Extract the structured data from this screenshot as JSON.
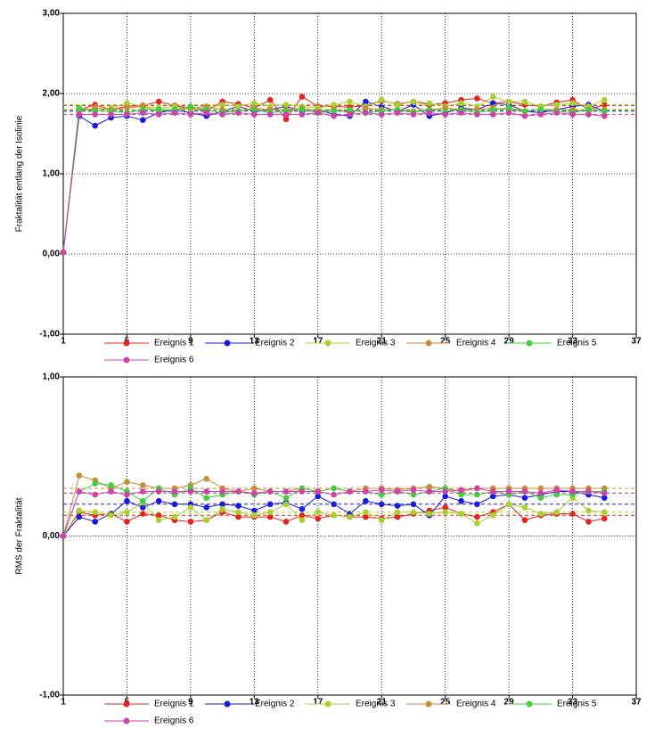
{
  "chart_data": [
    {
      "type": "line",
      "ylabel": "Fraktalität entlang der Isolinie",
      "x": [
        1,
        2,
        3,
        4,
        5,
        6,
        7,
        8,
        9,
        10,
        11,
        12,
        13,
        14,
        15,
        16,
        17,
        18,
        19,
        20,
        21,
        22,
        23,
        24,
        25,
        26,
        27,
        28,
        29,
        30,
        31,
        32,
        33,
        34,
        35
      ],
      "xlim": [
        1,
        37
      ],
      "xticks": [
        1,
        5,
        9,
        13,
        17,
        21,
        25,
        29,
        33,
        37
      ],
      "ylim": [
        -1,
        3
      ],
      "yticks": [
        {
          "value": -1,
          "label": "-1,00"
        },
        {
          "value": 0,
          "label": "0,00"
        },
        {
          "value": 1,
          "label": "1,00"
        },
        {
          "value": 2,
          "label": "2,00"
        },
        {
          "value": 3,
          "label": "3,00"
        }
      ],
      "grid": true,
      "series": [
        {
          "name": "Ereignis 1",
          "color": "#e8221e",
          "mean": 1.85,
          "values": [
            0.02,
            1.8,
            1.86,
            1.8,
            1.84,
            1.85,
            1.9,
            1.85,
            1.82,
            1.78,
            1.9,
            1.87,
            1.82,
            1.92,
            1.68,
            1.96,
            1.84,
            1.84,
            1.83,
            1.85,
            1.91,
            1.87,
            1.9,
            1.86,
            1.88,
            1.92,
            1.94,
            1.88,
            1.9,
            1.86,
            1.84,
            1.89,
            1.92,
            1.8,
            1.86
          ]
        },
        {
          "name": "Ereignis 2",
          "color": "#1a1adf",
          "mean": 1.78,
          "values": [
            0.02,
            1.72,
            1.6,
            1.7,
            1.72,
            1.67,
            1.76,
            1.8,
            1.76,
            1.72,
            1.78,
            1.84,
            1.78,
            1.8,
            1.84,
            1.78,
            1.8,
            1.74,
            1.72,
            1.9,
            1.84,
            1.78,
            1.86,
            1.72,
            1.76,
            1.82,
            1.8,
            1.88,
            1.86,
            1.78,
            1.76,
            1.8,
            1.84,
            1.86,
            1.78
          ]
        },
        {
          "name": "Ereignis 3",
          "color": "#a8d12f",
          "mean": 1.86,
          "values": [
            0.02,
            1.82,
            1.8,
            1.82,
            1.88,
            1.84,
            1.82,
            1.84,
            1.8,
            1.82,
            1.86,
            1.84,
            1.88,
            1.84,
            1.86,
            1.84,
            1.82,
            1.86,
            1.9,
            1.84,
            1.92,
            1.86,
            1.9,
            1.88,
            1.84,
            1.88,
            1.84,
            1.96,
            1.9,
            1.9,
            1.84,
            1.86,
            1.88,
            1.84,
            1.92
          ]
        },
        {
          "name": "Ereignis 4",
          "color": "#c98a3a",
          "mean": 1.8,
          "values": [
            0.02,
            1.78,
            1.82,
            1.8,
            1.82,
            1.84,
            1.78,
            1.8,
            1.82,
            1.84,
            1.8,
            1.78,
            1.82,
            1.8,
            1.8,
            1.82,
            1.78,
            1.8,
            1.76,
            1.82,
            1.8,
            1.8,
            1.78,
            1.8,
            1.82,
            1.8,
            1.8,
            1.82,
            1.8,
            1.78,
            1.8,
            1.8,
            1.8,
            1.78,
            1.8
          ]
        },
        {
          "name": "Ereignis 5",
          "color": "#3fcf3f",
          "mean": 1.79,
          "values": [
            0.02,
            1.82,
            1.78,
            1.78,
            1.76,
            1.8,
            1.8,
            1.8,
            1.84,
            1.8,
            1.76,
            1.78,
            1.8,
            1.76,
            1.78,
            1.8,
            1.76,
            1.78,
            1.8,
            1.76,
            1.78,
            1.8,
            1.76,
            1.8,
            1.78,
            1.8,
            1.76,
            1.8,
            1.82,
            1.78,
            1.8,
            1.78,
            1.76,
            1.8,
            1.78
          ]
        },
        {
          "name": "Ereignis 6",
          "color": "#cc44aa",
          "mean": 1.74,
          "values": [
            0.02,
            1.74,
            1.74,
            1.74,
            1.74,
            1.76,
            1.74,
            1.76,
            1.74,
            1.76,
            1.74,
            1.76,
            1.74,
            1.74,
            1.74,
            1.74,
            1.76,
            1.72,
            1.74,
            1.76,
            1.74,
            1.76,
            1.74,
            1.76,
            1.74,
            1.76,
            1.74,
            1.74,
            1.76,
            1.72,
            1.74,
            1.76,
            1.74,
            1.74,
            1.72
          ]
        }
      ]
    },
    {
      "type": "line",
      "ylabel": "RMS der Fraktalität",
      "x": [
        1,
        2,
        3,
        4,
        5,
        6,
        7,
        8,
        9,
        10,
        11,
        12,
        13,
        14,
        15,
        16,
        17,
        18,
        19,
        20,
        21,
        22,
        23,
        24,
        25,
        26,
        27,
        28,
        29,
        30,
        31,
        32,
        33,
        34,
        35
      ],
      "xlim": [
        1,
        37
      ],
      "xticks": [
        1,
        5,
        9,
        13,
        17,
        21,
        25,
        29,
        33,
        37
      ],
      "ylim": [
        -1,
        1
      ],
      "yticks": [
        {
          "value": -1,
          "label": "-1,00"
        },
        {
          "value": 0,
          "label": "0,00"
        },
        {
          "value": 1,
          "label": "1,00"
        }
      ],
      "grid": true,
      "series": [
        {
          "name": "Ereignis 1",
          "color": "#e8221e",
          "mean": 0.13,
          "values": [
            0,
            0.15,
            0.13,
            0.14,
            0.09,
            0.14,
            0.13,
            0.1,
            0.09,
            0.1,
            0.15,
            0.12,
            0.12,
            0.12,
            0.09,
            0.13,
            0.11,
            0.13,
            0.12,
            0.12,
            0.11,
            0.12,
            0.14,
            0.16,
            0.18,
            0.14,
            0.12,
            0.15,
            0.2,
            0.1,
            0.13,
            0.14,
            0.14,
            0.09,
            0.11
          ]
        },
        {
          "name": "Ereignis 2",
          "color": "#1a1adf",
          "mean": 0.2,
          "values": [
            0,
            0.12,
            0.09,
            0.14,
            0.22,
            0.18,
            0.22,
            0.2,
            0.2,
            0.18,
            0.2,
            0.19,
            0.16,
            0.2,
            0.21,
            0.17,
            0.25,
            0.2,
            0.14,
            0.22,
            0.2,
            0.19,
            0.2,
            0.13,
            0.25,
            0.22,
            0.2,
            0.25,
            0.26,
            0.24,
            0.26,
            0.28,
            0.28,
            0.26,
            0.24
          ]
        },
        {
          "name": "Ereignis 3",
          "color": "#a8d12f",
          "mean": 0.15,
          "values": [
            0,
            0.16,
            0.15,
            0.13,
            0.15,
            0.21,
            0.1,
            0.12,
            0.18,
            0.1,
            0.17,
            0.15,
            0.13,
            0.15,
            0.2,
            0.1,
            0.15,
            0.13,
            0.12,
            0.15,
            0.1,
            0.15,
            0.15,
            0.14,
            0.15,
            0.14,
            0.08,
            0.13,
            0.2,
            0.18,
            0.14,
            0.15,
            0.24,
            0.16,
            0.15
          ]
        },
        {
          "name": "Ereignis 4",
          "color": "#c98a3a",
          "mean": 0.3,
          "values": [
            0,
            0.38,
            0.35,
            0.3,
            0.34,
            0.32,
            0.3,
            0.3,
            0.32,
            0.36,
            0.3,
            0.28,
            0.3,
            0.28,
            0.28,
            0.3,
            0.28,
            0.3,
            0.28,
            0.3,
            0.3,
            0.29,
            0.3,
            0.31,
            0.3,
            0.28,
            0.3,
            0.3,
            0.3,
            0.3,
            0.3,
            0.3,
            0.3,
            0.3,
            0.3
          ]
        },
        {
          "name": "Ereignis 5",
          "color": "#3fcf3f",
          "mean": 0.27,
          "values": [
            0,
            0.28,
            0.33,
            0.32,
            0.28,
            0.22,
            0.3,
            0.26,
            0.3,
            0.24,
            0.26,
            0.28,
            0.26,
            0.28,
            0.24,
            0.3,
            0.28,
            0.3,
            0.28,
            0.28,
            0.26,
            0.28,
            0.26,
            0.28,
            0.3,
            0.26,
            0.26,
            0.28,
            0.26,
            0.28,
            0.24,
            0.26,
            0.26,
            0.28,
            0.28
          ]
        },
        {
          "name": "Ereignis 6",
          "color": "#cc44aa",
          "mean": 0.27,
          "values": [
            0,
            0.28,
            0.26,
            0.28,
            0.26,
            0.28,
            0.28,
            0.28,
            0.28,
            0.28,
            0.28,
            0.28,
            0.27,
            0.28,
            0.28,
            0.28,
            0.28,
            0.26,
            0.28,
            0.28,
            0.29,
            0.28,
            0.29,
            0.28,
            0.28,
            0.29,
            0.3,
            0.28,
            0.28,
            0.28,
            0.27,
            0.29,
            0.28,
            0.28,
            0.27
          ]
        }
      ]
    }
  ]
}
